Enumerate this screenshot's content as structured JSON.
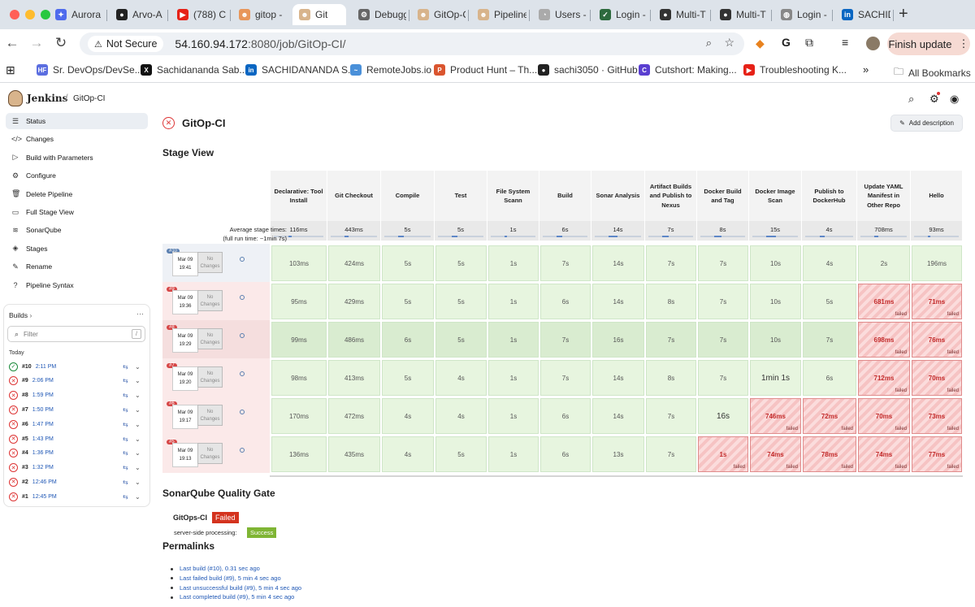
{
  "browser": {
    "tabs": [
      {
        "label": "Aurora",
        "color": "#4f6bed",
        "glyph": "✦"
      },
      {
        "label": "Arvo-A",
        "color": "#222222",
        "glyph": "●"
      },
      {
        "label": "(788) C",
        "color": "#e62117",
        "glyph": "▶"
      },
      {
        "label": "gitop -",
        "color": "#e8965a",
        "glyph": "☻"
      },
      {
        "label": "Git",
        "color": "#d8b48c",
        "glyph": "☻"
      },
      {
        "label": "Debugg",
        "color": "#666666",
        "glyph": "⚙"
      },
      {
        "label": "GitOp-C",
        "color": "#d8b48c",
        "glyph": "☻"
      },
      {
        "label": "Pipeline",
        "color": "#d8b48c",
        "glyph": "☻"
      },
      {
        "label": "Users -",
        "color": "#aaaaaa",
        "glyph": "◔"
      },
      {
        "label": "Login -",
        "color": "#2d6a3e",
        "glyph": "✓"
      },
      {
        "label": "Multi-T",
        "color": "#333333",
        "glyph": "●"
      },
      {
        "label": "Multi-T",
        "color": "#333333",
        "glyph": "●"
      },
      {
        "label": "Login -",
        "color": "#888888",
        "glyph": "◍"
      },
      {
        "label": "SACHID",
        "color": "#0a66c2",
        "glyph": "in"
      }
    ],
    "new_tab": "+",
    "not_secure": "Not Secure",
    "url_host": "54.160.94.172",
    "url_rest": ":8080/job/GitOp-CI/",
    "finish_update": "Finish update",
    "bookmarks": [
      {
        "label": "Sr. DevOps/DevSe...",
        "color": "#5b6ee0",
        "glyph": "HF"
      },
      {
        "label": "Sachidananda Sab...",
        "color": "#111111",
        "glyph": "X"
      },
      {
        "label": "SACHIDANANDA S...",
        "color": "#0a66c2",
        "glyph": "in"
      },
      {
        "label": "RemoteJobs.io",
        "color": "#4a90d9",
        "glyph": "~"
      },
      {
        "label": "Product Hunt – Th...",
        "color": "#da552f",
        "glyph": "P"
      },
      {
        "label": "sachi3050 · GitHub",
        "color": "#222222",
        "glyph": "●"
      },
      {
        "label": "Cutshort: Making...",
        "color": "#5a3fd0",
        "glyph": "C"
      },
      {
        "label": "Troubleshooting K...",
        "color": "#e62117",
        "glyph": "▶"
      }
    ],
    "more_bookmarks": "»",
    "all_bookmarks": "All Bookmarks"
  },
  "jenkins": {
    "brand": "Jenkins",
    "breadcrumb": "GitOp-CI",
    "sidebar": [
      {
        "label": "Status",
        "icon": "☰",
        "name": "status"
      },
      {
        "label": "Changes",
        "icon": "</>",
        "name": "changes"
      },
      {
        "label": "Build with Parameters",
        "icon": "▷",
        "name": "build-with-parameters"
      },
      {
        "label": "Configure",
        "icon": "⚙",
        "name": "configure"
      },
      {
        "label": "Delete Pipeline",
        "icon": "🗑",
        "name": "delete-pipeline"
      },
      {
        "label": "Full Stage View",
        "icon": "▭",
        "name": "full-stage-view"
      },
      {
        "label": "SonarQube",
        "icon": "≋",
        "name": "sonarqube"
      },
      {
        "label": "Stages",
        "icon": "◈",
        "name": "stages"
      },
      {
        "label": "Rename",
        "icon": "✎",
        "name": "rename"
      },
      {
        "label": "Pipeline Syntax",
        "icon": "?",
        "name": "pipeline-syntax"
      }
    ],
    "builds_title": "Builds",
    "builds_more": "···",
    "filter_placeholder": "Filter",
    "filter_key": "/",
    "today": "Today",
    "builds": [
      {
        "num": "#10",
        "time": "2:11 PM",
        "status": "success"
      },
      {
        "num": "#9",
        "time": "2:06 PM",
        "status": "failed"
      },
      {
        "num": "#8",
        "time": "1:59 PM",
        "status": "failed"
      },
      {
        "num": "#7",
        "time": "1:50 PM",
        "status": "failed"
      },
      {
        "num": "#6",
        "time": "1:47 PM",
        "status": "failed"
      },
      {
        "num": "#5",
        "time": "1:43 PM",
        "status": "failed"
      },
      {
        "num": "#4",
        "time": "1:36 PM",
        "status": "failed"
      },
      {
        "num": "#3",
        "time": "1:32 PM",
        "status": "failed"
      },
      {
        "num": "#2",
        "time": "12:46 PM",
        "status": "failed"
      },
      {
        "num": "#1",
        "time": "12:45 PM",
        "status": "failed"
      }
    ]
  },
  "main": {
    "title": "GitOp-CI",
    "add_description": "Add description",
    "stage_view_title": "Stage View",
    "avg_label_1": "Average stage times:",
    "avg_label_2": "(full run time: ~1min 7s)",
    "stages": [
      {
        "name": "Declarative: Tool Install",
        "avg": "116ms",
        "bar": 0.15
      },
      {
        "name": "Git Checkout",
        "avg": "443ms",
        "bar": 0.2
      },
      {
        "name": "Compile",
        "avg": "5s",
        "bar": 0.3
      },
      {
        "name": "Test",
        "avg": "5s",
        "bar": 0.3
      },
      {
        "name": "File System Scann",
        "avg": "1s",
        "bar": 0.18
      },
      {
        "name": "Build",
        "avg": "6s",
        "bar": 0.35
      },
      {
        "name": "Sonar Analysis",
        "avg": "14s",
        "bar": 0.5
      },
      {
        "name": "Artifact Builds and Publish to Nexus",
        "avg": "7s",
        "bar": 0.38
      },
      {
        "name": "Docker Build and Tag",
        "avg": "8s",
        "bar": 0.42
      },
      {
        "name": "Docker Image Scan",
        "avg": "15s",
        "bar": 0.55
      },
      {
        "name": "Publish to DockerHub",
        "avg": "4s",
        "bar": 0.28
      },
      {
        "name": "Update YAML Manifest in Other Repo",
        "avg": "708ms",
        "bar": 0.2
      },
      {
        "name": "Hello",
        "avg": "93ms",
        "bar": 0.15
      }
    ],
    "failed_label": "failed",
    "no_changes": "No Changes",
    "runs": [
      {
        "badge": "#10",
        "date": "Mar 09",
        "time": "19:41",
        "ok": true,
        "row": "ok",
        "cells": [
          [
            "103ms",
            ""
          ],
          [
            "424ms",
            ""
          ],
          [
            "5s",
            ""
          ],
          [
            "5s",
            ""
          ],
          [
            "1s",
            ""
          ],
          [
            "7s",
            ""
          ],
          [
            "14s",
            ""
          ],
          [
            "7s",
            ""
          ],
          [
            "7s",
            ""
          ],
          [
            "10s",
            ""
          ],
          [
            "4s",
            ""
          ],
          [
            "2s",
            ""
          ],
          [
            "196ms",
            ""
          ]
        ]
      },
      {
        "badge": "#9",
        "date": "Mar 09",
        "time": "19:36",
        "ok": false,
        "row": "ok",
        "cells": [
          [
            "95ms",
            ""
          ],
          [
            "429ms",
            ""
          ],
          [
            "5s",
            ""
          ],
          [
            "5s",
            ""
          ],
          [
            "1s",
            ""
          ],
          [
            "6s",
            ""
          ],
          [
            "14s",
            ""
          ],
          [
            "8s",
            ""
          ],
          [
            "7s",
            ""
          ],
          [
            "10s",
            ""
          ],
          [
            "5s",
            ""
          ],
          [
            "681ms",
            "f"
          ],
          [
            "71ms",
            "f"
          ]
        ]
      },
      {
        "badge": "#8",
        "date": "Mar 09",
        "time": "19:29",
        "ok": false,
        "row": "okd",
        "cells": [
          [
            "99ms",
            ""
          ],
          [
            "486ms",
            ""
          ],
          [
            "6s",
            ""
          ],
          [
            "5s",
            ""
          ],
          [
            "1s",
            ""
          ],
          [
            "7s",
            ""
          ],
          [
            "16s",
            ""
          ],
          [
            "7s",
            ""
          ],
          [
            "7s",
            ""
          ],
          [
            "10s",
            ""
          ],
          [
            "7s",
            ""
          ],
          [
            "698ms",
            "f"
          ],
          [
            "76ms",
            "f"
          ]
        ]
      },
      {
        "badge": "#7",
        "date": "Mar 09",
        "time": "19:20",
        "ok": false,
        "row": "ok",
        "cells": [
          [
            "98ms",
            ""
          ],
          [
            "413ms",
            ""
          ],
          [
            "5s",
            ""
          ],
          [
            "4s",
            ""
          ],
          [
            "1s",
            ""
          ],
          [
            "7s",
            ""
          ],
          [
            "14s",
            ""
          ],
          [
            "8s",
            ""
          ],
          [
            "7s",
            ""
          ],
          [
            "1min 1s",
            "big"
          ],
          [
            "6s",
            ""
          ],
          [
            "712ms",
            "f"
          ],
          [
            "70ms",
            "f"
          ]
        ]
      },
      {
        "badge": "#6",
        "date": "Mar 09",
        "time": "19:17",
        "ok": false,
        "row": "ok",
        "cells": [
          [
            "170ms",
            ""
          ],
          [
            "472ms",
            ""
          ],
          [
            "4s",
            ""
          ],
          [
            "4s",
            ""
          ],
          [
            "1s",
            ""
          ],
          [
            "6s",
            ""
          ],
          [
            "14s",
            ""
          ],
          [
            "7s",
            ""
          ],
          [
            "16s",
            "big"
          ],
          [
            "746ms",
            "f"
          ],
          [
            "72ms",
            "f"
          ],
          [
            "70ms",
            "f"
          ],
          [
            "73ms",
            "f"
          ]
        ]
      },
      {
        "badge": "#5",
        "date": "Mar 09",
        "time": "19:13",
        "ok": false,
        "row": "ok",
        "cells": [
          [
            "136ms",
            ""
          ],
          [
            "435ms",
            ""
          ],
          [
            "4s",
            ""
          ],
          [
            "5s",
            ""
          ],
          [
            "1s",
            ""
          ],
          [
            "6s",
            ""
          ],
          [
            "13s",
            ""
          ],
          [
            "7s",
            ""
          ],
          [
            "1s",
            "f"
          ],
          [
            "74ms",
            "f"
          ],
          [
            "78ms",
            "f"
          ],
          [
            "74ms",
            "f"
          ],
          [
            "77ms",
            "f"
          ]
        ]
      }
    ],
    "sonar_title": "SonarQube Quality Gate",
    "sonar_project": "GitOps-CI",
    "sonar_status": "Failed",
    "sonar_processing_label": "server-side processing:",
    "sonar_processing_status": "Success",
    "permalinks_title": "Permalinks",
    "permalinks": [
      "Last build (#10), 0.31 sec ago",
      "Last failed build (#9), 5 min 4 sec ago",
      "Last unsuccessful build (#9), 5 min 4 sec ago",
      "Last completed build (#9), 5 min 4 sec ago"
    ]
  }
}
